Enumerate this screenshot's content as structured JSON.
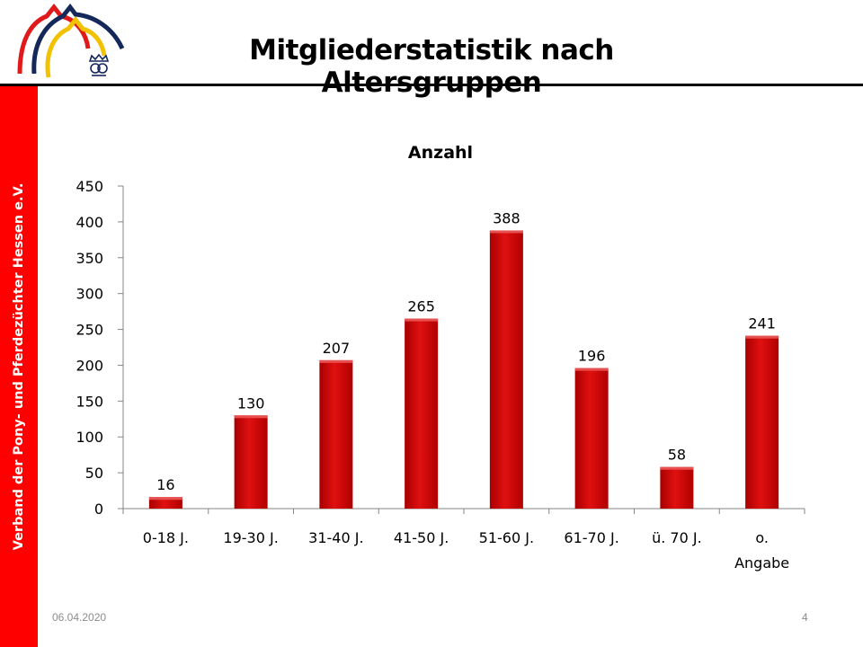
{
  "slide": {
    "title": "Mitgliederstatistik nach Altersgruppen",
    "sidebar_text": "Verband  der Pony- und Pferdezüchter Hessen e.V.",
    "date": "06.04.2020",
    "page_number": "4"
  },
  "colors": {
    "bar": "#cc0000",
    "bar_highlight": "#e52a2a",
    "sidebar": "#ff0000",
    "logo_red": "#e01a1a",
    "logo_yellow": "#f2c200",
    "logo_navy": "#14285a"
  },
  "chart_data": {
    "type": "bar",
    "title": "Anzahl",
    "categories": [
      "0-18 J.",
      "19-30 J.",
      "31-40 J.",
      "41-50 J.",
      "51-60 J.",
      "61-70 J.",
      "ü. 70 J.",
      "o. Angabe"
    ],
    "values": [
      16,
      130,
      207,
      265,
      388,
      196,
      58,
      241
    ],
    "data_labels": [
      "16",
      "130",
      "207",
      "265",
      "388",
      "196",
      "58",
      "241"
    ],
    "ylim": [
      0,
      450
    ],
    "yticks": [
      0,
      50,
      100,
      150,
      200,
      250,
      300,
      350,
      400,
      450
    ],
    "xlabel": "",
    "ylabel": "",
    "grid": false,
    "legend": false
  }
}
